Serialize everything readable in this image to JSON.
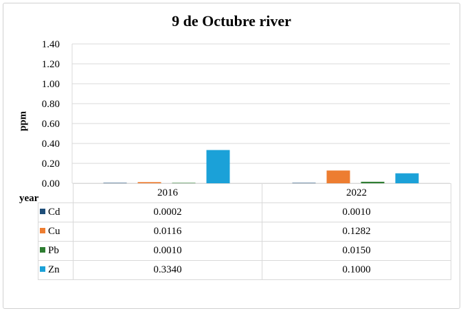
{
  "chart_data": {
    "type": "bar",
    "title": "9 de Octubre river",
    "ylabel": "ppm",
    "xlabel": "year",
    "ylim": [
      0,
      1.4
    ],
    "yticks": [
      "0.00",
      "0.20",
      "0.40",
      "0.60",
      "0.80",
      "1.00",
      "1.20",
      "1.40"
    ],
    "categories": [
      "2016",
      "2022"
    ],
    "series": [
      {
        "name": "Cd",
        "color": "#1f4e79",
        "values": [
          0.0002,
          0.001
        ],
        "labels": [
          "0.0002",
          "0.0010"
        ]
      },
      {
        "name": "Cu",
        "color": "#ed7d31",
        "values": [
          0.0116,
          0.1282
        ],
        "labels": [
          "0.0116",
          "0.1282"
        ]
      },
      {
        "name": "Pb",
        "color": "#2e7d32",
        "values": [
          0.001,
          0.015
        ],
        "labels": [
          "0.0010",
          "0.0150"
        ]
      },
      {
        "name": "Zn",
        "color": "#1ba1d8",
        "values": [
          0.334,
          0.1
        ],
        "labels": [
          "0.3340",
          "0.1000"
        ]
      }
    ],
    "grid": true,
    "legend": "data table"
  }
}
